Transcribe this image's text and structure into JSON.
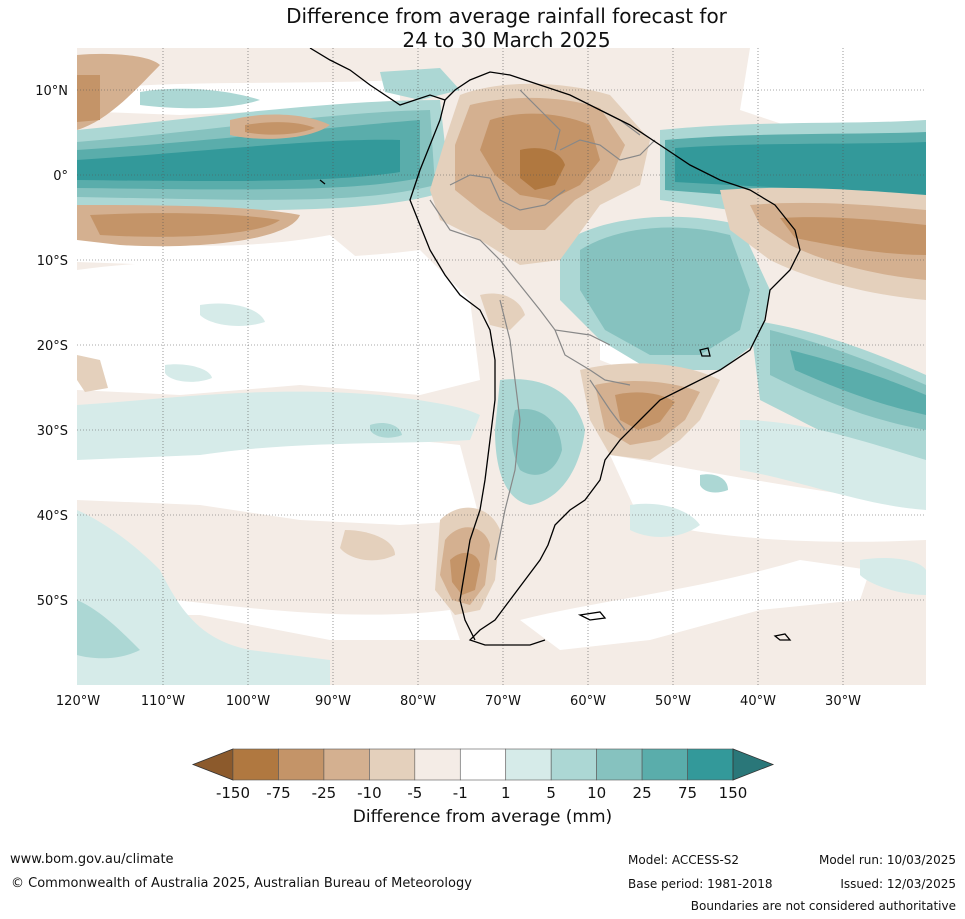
{
  "title_line1": "Difference from average rainfall forecast for",
  "title_line2": "24 to 30 March 2025",
  "lat_labels": [
    "10°N",
    "0°",
    "10°S",
    "20°S",
    "30°S",
    "40°S",
    "50°S"
  ],
  "lon_labels": [
    "120°W",
    "110°W",
    "100°W",
    "90°W",
    "80°W",
    "70°W",
    "60°W",
    "50°W",
    "40°W",
    "30°W"
  ],
  "colorbar": {
    "title": "Difference from average (mm)",
    "tick_labels": [
      "-150",
      "-75",
      "-25",
      "-10",
      "-5",
      "-1",
      "1",
      "5",
      "10",
      "25",
      "75",
      "150"
    ],
    "colors": [
      "#8c5a2c",
      "#b07840",
      "#c49468",
      "#d4b090",
      "#e4d0bc",
      "#f4ece6",
      "#ffffff",
      "#d6ebe9",
      "#acd7d4",
      "#86c2bf",
      "#5aadab",
      "#33999a",
      "#2a7779"
    ]
  },
  "footer": {
    "url": "www.bom.gov.au/climate",
    "copyright": "© Commonwealth of Australia 2025, Australian Bureau of Meteorology",
    "model": "Model: ACCESS-S2",
    "base_period": "Base period: 1981-2018",
    "model_run": "Model run: 10/03/2025",
    "issued": "Issued: 12/03/2025",
    "boundaries_note": "Boundaries are not considered authoritative"
  }
}
